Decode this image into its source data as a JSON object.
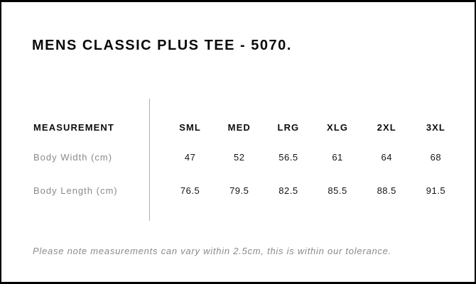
{
  "page": {
    "title": "MENS CLASSIC PLUS TEE - 5070.",
    "note": "Please note measurements can vary within 2.5cm, this is within our tolerance."
  },
  "table": {
    "measurement_label": "MEASUREMENT",
    "sizes": [
      "SML",
      "MED",
      "LRG",
      "XLG",
      "2XL",
      "3XL"
    ],
    "rows": [
      {
        "label": "Body Width (cm)",
        "values": [
          "47",
          "52",
          "56.5",
          "61",
          "64",
          "68"
        ]
      },
      {
        "label": "Body Length (cm)",
        "values": [
          "76.5",
          "79.5",
          "82.5",
          "85.5",
          "88.5",
          "91.5"
        ]
      }
    ]
  },
  "colors": {
    "frame_border": "#000000",
    "title_text": "#0a0a0a",
    "header_text": "#0d0d0d",
    "value_text": "#141414",
    "muted_text": "#8a8a8a",
    "divider_line": "#aeaeae",
    "background": "#ffffff"
  }
}
